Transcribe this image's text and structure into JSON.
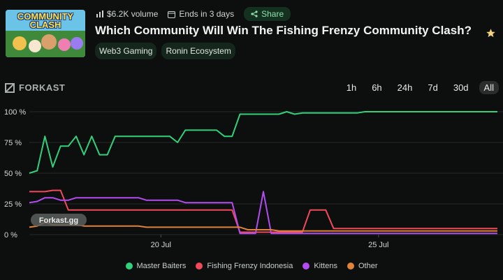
{
  "header": {
    "thumb_text": "COMMUNITY CLASH",
    "volume": "$6.2K volume",
    "ends": "Ends in 3 days",
    "share_label": "Share",
    "title": "Which Community Will Win The Fishing Frenzy Community Clash?",
    "tags": [
      "Web3 Gaming",
      "Ronin Ecosystem"
    ]
  },
  "brand": "FORKAST",
  "watermark": "Forkast.gg",
  "ranges": [
    "1h",
    "6h",
    "24h",
    "7d",
    "30d",
    "All"
  ],
  "active_range": "All",
  "colors": {
    "accent": "#32d07a",
    "master": "#32d07a",
    "fishing": "#f04a5a",
    "kittens": "#b24cf0",
    "other": "#e0823a"
  },
  "chart_data": {
    "type": "line",
    "x_ticks": [
      "20 Jul",
      "25 Jul"
    ],
    "y_ticks": [
      "100 %",
      "75 %",
      "50 %",
      "25 %",
      "0 %"
    ],
    "ylim": [
      0,
      100
    ],
    "x": [
      0,
      1,
      2,
      3,
      4,
      5,
      6,
      7,
      8,
      9,
      10,
      11,
      12,
      13,
      14,
      15,
      16,
      17,
      18,
      19,
      20,
      21,
      22,
      23,
      24,
      25,
      26,
      27,
      28,
      29,
      30,
      31,
      32,
      33,
      34,
      35,
      36,
      37,
      38,
      39,
      40,
      41,
      42,
      43,
      44,
      45,
      46,
      47,
      48,
      49,
      50,
      51,
      52,
      53,
      54,
      55,
      56,
      57,
      58,
      59,
      60
    ],
    "series": [
      {
        "name": "Master Baiters",
        "color_key": "master",
        "values": [
          50,
          52,
          80,
          55,
          72,
          72,
          80,
          65,
          80,
          65,
          65,
          80,
          80,
          80,
          80,
          80,
          80,
          80,
          80,
          75,
          85,
          85,
          85,
          85,
          85,
          80,
          80,
          98,
          98,
          98,
          98,
          98,
          98,
          100,
          98,
          99,
          99,
          99,
          99,
          99,
          99,
          99,
          99,
          100,
          100,
          100,
          100,
          100,
          100,
          100,
          100,
          100,
          100,
          100,
          100,
          100,
          100,
          100,
          100,
          100,
          100
        ]
      },
      {
        "name": "Fishing Frenzy Indonesia",
        "color_key": "fishing",
        "values": [
          35,
          35,
          35,
          36,
          36,
          20,
          20,
          20,
          20,
          20,
          20,
          20,
          20,
          20,
          20,
          20,
          20,
          20,
          20,
          20,
          20,
          20,
          20,
          20,
          20,
          20,
          20,
          2,
          2,
          2,
          2,
          2,
          2,
          2,
          2,
          2,
          20,
          20,
          20,
          5,
          5,
          5,
          5,
          5,
          5,
          5,
          5,
          5,
          5,
          5,
          5,
          5,
          5,
          5,
          5,
          5,
          5,
          5,
          5,
          5,
          5
        ]
      },
      {
        "name": "Kittens",
        "color_key": "kittens",
        "values": [
          26,
          27,
          30,
          30,
          28,
          28,
          30,
          30,
          30,
          30,
          30,
          30,
          30,
          30,
          30,
          28,
          28,
          28,
          28,
          28,
          26,
          26,
          26,
          26,
          26,
          26,
          26,
          1,
          1,
          1,
          35,
          1,
          1,
          1,
          1,
          1,
          1,
          1,
          1,
          1,
          1,
          1,
          1,
          1,
          1,
          1,
          1,
          1,
          1,
          1,
          1,
          1,
          1,
          1,
          1,
          1,
          1,
          1,
          1,
          1,
          1
        ]
      },
      {
        "name": "Other",
        "color_key": "other",
        "values": [
          6,
          7,
          10,
          8,
          8,
          8,
          8,
          7,
          7,
          7,
          7,
          7,
          7,
          7,
          7,
          6,
          6,
          6,
          6,
          6,
          6,
          6,
          6,
          6,
          6,
          6,
          6,
          6,
          4,
          4,
          4,
          4,
          3,
          3,
          3,
          3,
          3,
          3,
          3,
          3,
          3,
          3,
          3,
          3,
          3,
          3,
          3,
          3,
          3,
          3,
          3,
          3,
          3,
          3,
          3,
          3,
          3,
          3,
          3,
          3,
          3
        ]
      }
    ]
  }
}
